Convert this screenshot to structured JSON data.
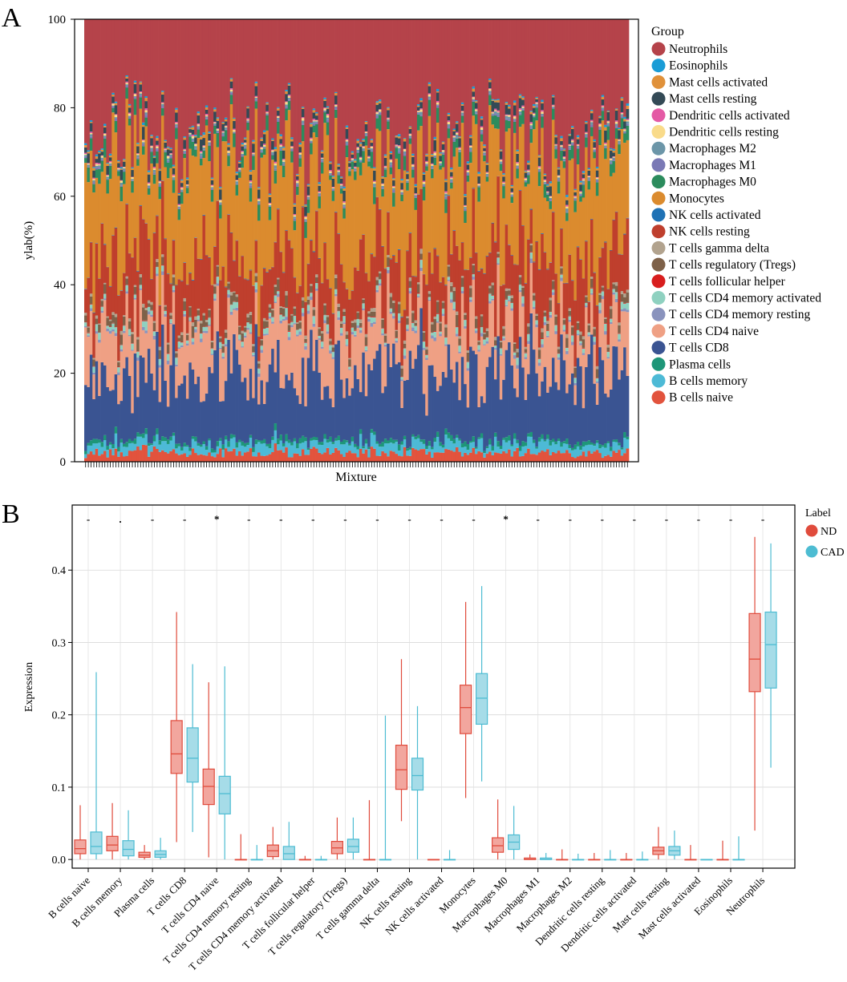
{
  "chart_data": [
    {
      "panel": "A",
      "type": "stacked-bar",
      "ylabel": "ylab(%)",
      "xlabel": "Mixture",
      "ylim": [
        0,
        100
      ],
      "yticks": [
        "0",
        "20",
        "40",
        "60",
        "80",
        "100"
      ],
      "n_samples": 198,
      "legend_title": "Group",
      "legend_position": "right",
      "series": [
        {
          "name": "Neutrophils",
          "color": "#B5434A",
          "mean_percent": 26.5
        },
        {
          "name": "Eosinophils",
          "color": "#1A9CD6",
          "mean_percent": 0.3
        },
        {
          "name": "Mast cells activated",
          "color": "#E0913A",
          "mean_percent": 0.4
        },
        {
          "name": "Mast cells resting",
          "color": "#344A56",
          "mean_percent": 1.5
        },
        {
          "name": "Dendritic cells activated",
          "color": "#E45AA5",
          "mean_percent": 0.2
        },
        {
          "name": "Dendritic cells resting",
          "color": "#F9DB8A",
          "mean_percent": 0.3
        },
        {
          "name": "Macrophages M2",
          "color": "#6C96A8",
          "mean_percent": 0.4
        },
        {
          "name": "Macrophages M1",
          "color": "#7A79B5",
          "mean_percent": 0.3
        },
        {
          "name": "Macrophages M0",
          "color": "#2C8C5D",
          "mean_percent": 2.3
        },
        {
          "name": "Monocytes",
          "color": "#DB8B2E",
          "mean_percent": 21.0
        },
        {
          "name": "NK cells activated",
          "color": "#1F72B5",
          "mean_percent": 0.1
        },
        {
          "name": "NK cells resting",
          "color": "#BF3F2D",
          "mean_percent": 12.0
        },
        {
          "name": "T cells gamma delta",
          "color": "#B2A38E",
          "mean_percent": 0.5
        },
        {
          "name": "T cells regulatory (Tregs)",
          "color": "#7E6149",
          "mean_percent": 1.5
        },
        {
          "name": "T cells follicular helper",
          "color": "#D81E1E",
          "mean_percent": 0.1
        },
        {
          "name": "T cells CD4 memory activated",
          "color": "#8FD1C0",
          "mean_percent": 1.0
        },
        {
          "name": "T cells CD4 memory resting",
          "color": "#8A93BD",
          "mean_percent": 0.5
        },
        {
          "name": "T cells CD4 naive",
          "color": "#EFA084",
          "mean_percent": 10.0
        },
        {
          "name": "T cells CD8",
          "color": "#3A5492",
          "mean_percent": 14.5
        },
        {
          "name": "Plasma cells",
          "color": "#1E9678",
          "mean_percent": 0.8
        },
        {
          "name": "B cells memory",
          "color": "#4DBAD6",
          "mean_percent": 2.0
        },
        {
          "name": "B cells naive",
          "color": "#E2533D",
          "mean_percent": 2.0
        }
      ]
    },
    {
      "panel": "B",
      "type": "boxplot",
      "ylabel": "Expression",
      "xlabel": "",
      "ylim": [
        -0.012,
        0.49
      ],
      "yticks": [
        "0.0",
        "0.1",
        "0.2",
        "0.3",
        "0.4"
      ],
      "legend_title": "Label",
      "legend_position": "right",
      "groups": [
        {
          "name": "ND",
          "color": "#E04B3C",
          "fill": "#F2A69E"
        },
        {
          "name": "CAD",
          "color": "#4DBCD2",
          "fill": "#A6DCE8"
        }
      ],
      "categories": [
        {
          "label": "B cells naive",
          "sig": "-",
          "ND": [
            0.0,
            0.008,
            0.015,
            0.027,
            0.075
          ],
          "CAD": [
            0.0,
            0.008,
            0.018,
            0.038,
            0.259
          ]
        },
        {
          "label": "B cells memory",
          "sig": ".",
          "ND": [
            0.0,
            0.012,
            0.02,
            0.032,
            0.078
          ],
          "CAD": [
            0.0,
            0.005,
            0.014,
            0.026,
            0.068
          ]
        },
        {
          "label": "Plasma cells",
          "sig": "-",
          "ND": [
            0.0,
            0.003,
            0.006,
            0.01,
            0.02
          ],
          "CAD": [
            0.0,
            0.003,
            0.007,
            0.012,
            0.03
          ]
        },
        {
          "label": "T cells CD8",
          "sig": "-",
          "ND": [
            0.024,
            0.119,
            0.146,
            0.192,
            0.342
          ],
          "CAD": [
            0.038,
            0.107,
            0.14,
            0.182,
            0.27
          ]
        },
        {
          "label": "T cells CD4 naive",
          "sig": "*",
          "ND": [
            0.003,
            0.076,
            0.101,
            0.125,
            0.245
          ],
          "CAD": [
            0.0,
            0.063,
            0.091,
            0.115,
            0.267
          ]
        },
        {
          "label": "T cells CD4 memory resting",
          "sig": "-",
          "ND": [
            0.0,
            0.0,
            0.0,
            0.0,
            0.035
          ],
          "CAD": [
            0.0,
            0.0,
            0.0,
            0.0,
            0.02
          ]
        },
        {
          "label": "T cells CD4 memory activated",
          "sig": "-",
          "ND": [
            0.0,
            0.004,
            0.012,
            0.02,
            0.045
          ],
          "CAD": [
            0.0,
            0.0,
            0.008,
            0.018,
            0.052
          ]
        },
        {
          "label": "T cells follicular helper",
          "sig": "-",
          "ND": [
            0.0,
            0.0,
            0.0,
            0.0,
            0.005
          ],
          "CAD": [
            0.0,
            0.0,
            0.0,
            0.0,
            0.005
          ]
        },
        {
          "label": "T cells regulatory (Tregs)",
          "sig": "-",
          "ND": [
            0.0,
            0.008,
            0.016,
            0.025,
            0.058
          ],
          "CAD": [
            0.0,
            0.01,
            0.018,
            0.028,
            0.058
          ]
        },
        {
          "label": "T cells gamma delta",
          "sig": "-",
          "ND": [
            0.0,
            0.0,
            0.0,
            0.0,
            0.082
          ],
          "CAD": [
            0.0,
            0.0,
            0.0,
            0.0,
            0.199
          ]
        },
        {
          "label": "NK cells resting",
          "sig": "-",
          "ND": [
            0.053,
            0.097,
            0.124,
            0.158,
            0.277
          ],
          "CAD": [
            0.0,
            0.096,
            0.116,
            0.14,
            0.212
          ]
        },
        {
          "label": "NK cells activated",
          "sig": "-",
          "ND": [
            0.0,
            0.0,
            0.0,
            0.0,
            0.0
          ],
          "CAD": [
            0.0,
            0.0,
            0.0,
            0.0,
            0.013
          ]
        },
        {
          "label": "Monocytes",
          "sig": "-",
          "ND": [
            0.085,
            0.174,
            0.21,
            0.241,
            0.356
          ],
          "CAD": [
            0.108,
            0.187,
            0.223,
            0.257,
            0.378
          ]
        },
        {
          "label": "Macrophages M0",
          "sig": "*",
          "ND": [
            0.0,
            0.01,
            0.019,
            0.03,
            0.083
          ],
          "CAD": [
            0.0,
            0.014,
            0.024,
            0.034,
            0.074
          ]
        },
        {
          "label": "Macrophages M1",
          "sig": "-",
          "ND": [
            0.0,
            0.0,
            0.0,
            0.002,
            0.007
          ],
          "CAD": [
            0.0,
            0.0,
            0.0,
            0.002,
            0.009
          ]
        },
        {
          "label": "Macrophages M2",
          "sig": "-",
          "ND": [
            0.0,
            0.0,
            0.0,
            0.0,
            0.014
          ],
          "CAD": [
            0.0,
            0.0,
            0.0,
            0.0,
            0.008
          ]
        },
        {
          "label": "Dendritic cells resting",
          "sig": "-",
          "ND": [
            0.0,
            0.0,
            0.0,
            0.0,
            0.009
          ],
          "CAD": [
            0.0,
            0.0,
            0.0,
            0.0,
            0.013
          ]
        },
        {
          "label": "Dendritic cells activated",
          "sig": "-",
          "ND": [
            0.0,
            0.0,
            0.0,
            0.0,
            0.009
          ],
          "CAD": [
            0.0,
            0.0,
            0.0,
            0.0,
            0.011
          ]
        },
        {
          "label": "Mast cells resting",
          "sig": "-",
          "ND": [
            0.0,
            0.007,
            0.012,
            0.017,
            0.045
          ],
          "CAD": [
            0.0,
            0.006,
            0.012,
            0.018,
            0.04
          ]
        },
        {
          "label": "Mast cells activated",
          "sig": "-",
          "ND": [
            0.0,
            0.0,
            0.0,
            0.0,
            0.02
          ],
          "CAD": [
            0.0,
            0.0,
            0.0,
            0.0,
            0.0
          ]
        },
        {
          "label": "Eosinophils",
          "sig": "-",
          "ND": [
            0.0,
            0.0,
            0.0,
            0.0,
            0.026
          ],
          "CAD": [
            0.0,
            0.0,
            0.0,
            0.0,
            0.032
          ]
        },
        {
          "label": "Neutrophils",
          "sig": "-",
          "ND": [
            0.04,
            0.232,
            0.277,
            0.34,
            0.446
          ],
          "CAD": [
            0.127,
            0.237,
            0.297,
            0.342,
            0.437
          ]
        }
      ]
    }
  ]
}
